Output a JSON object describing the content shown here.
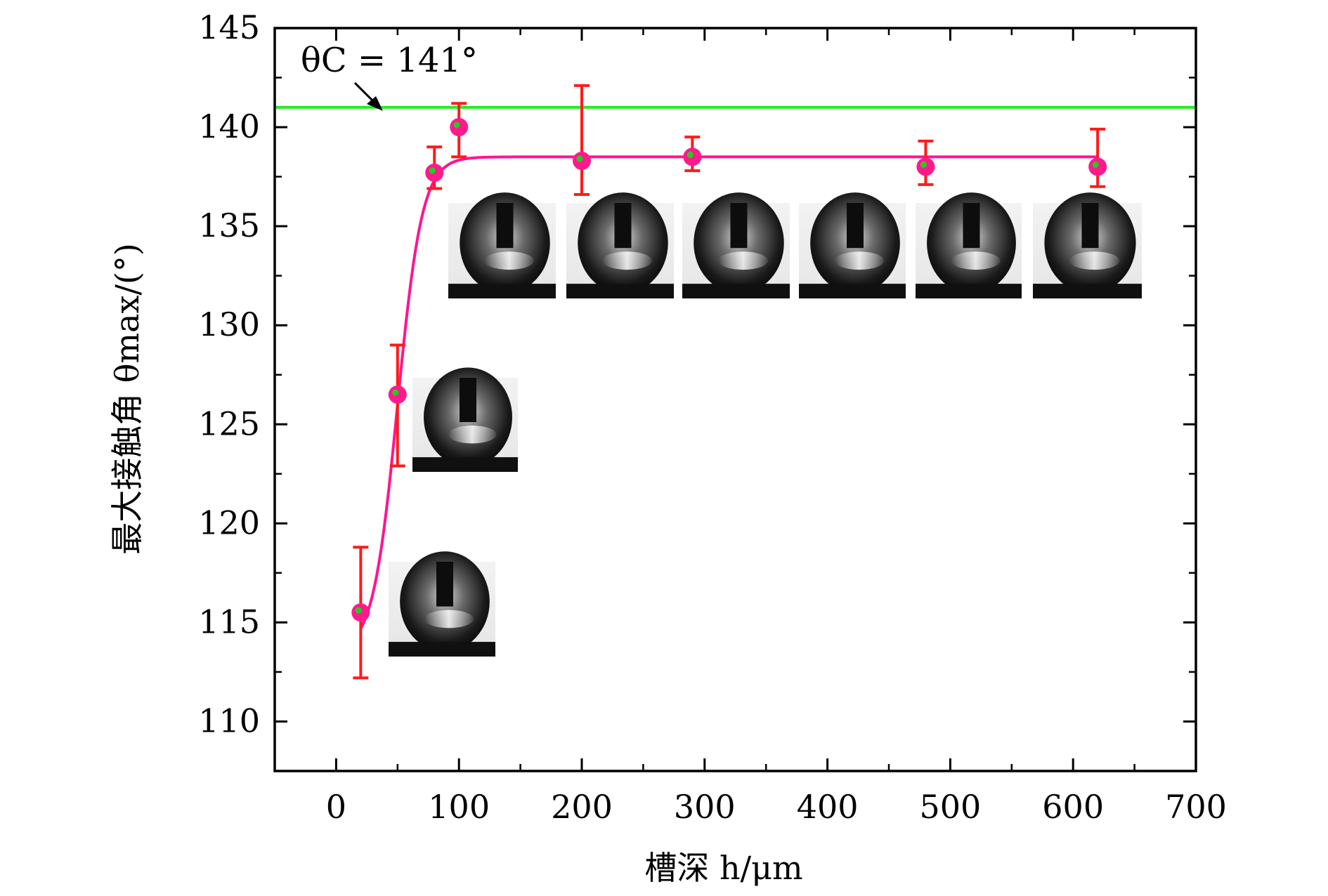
{
  "chart_data": {
    "type": "scatter",
    "title": "",
    "xlabel": "槽深 h/μm",
    "ylabel": "最大接触角 θmax/(°)",
    "xlim": [
      -50,
      700
    ],
    "ylim": [
      107.5,
      145
    ],
    "xticks": [
      0,
      100,
      200,
      300,
      400,
      500,
      600,
      700
    ],
    "yticks": [
      110,
      115,
      120,
      125,
      130,
      135,
      140,
      145
    ],
    "grid": false,
    "colors": {
      "marker": "#ff1a8c",
      "marker_center": "#22cc22",
      "error_bar": "#ff1a1a",
      "fit_line": "#ff1493",
      "reference_line": "#22ee22"
    },
    "series": [
      {
        "points": [
          {
            "x": 20,
            "y": 115.5,
            "err_low": 112.2,
            "err_high": 118.8
          },
          {
            "x": 50,
            "y": 126.5,
            "err_low": 122.9,
            "err_high": 129.0
          },
          {
            "x": 80,
            "y": 137.7,
            "err_low": 136.9,
            "err_high": 139.0
          },
          {
            "x": 100,
            "y": 140.0,
            "err_low": 138.5,
            "err_high": 141.2
          },
          {
            "x": 200,
            "y": 138.3,
            "err_low": 136.6,
            "err_high": 142.1
          },
          {
            "x": 290,
            "y": 138.5,
            "err_low": 137.8,
            "err_high": 139.5
          },
          {
            "x": 480,
            "y": 138.0,
            "err_low": 137.1,
            "err_high": 139.3
          },
          {
            "x": 620,
            "y": 138.0,
            "err_low": 137.0,
            "err_high": 139.9
          }
        ]
      }
    ],
    "fit": {
      "x_start": 20,
      "x_end": 620,
      "plateau": 138.5,
      "base": 113.5,
      "x_mid": 50,
      "width": 10
    },
    "reference_line": {
      "y": 141,
      "label": "θC = 141°"
    },
    "annotations": {
      "reference_label": "θC = 141°"
    },
    "insets": [
      {
        "name": "droplet-photo-h20",
        "x_data": 25
      },
      {
        "name": "droplet-photo-h50",
        "x_data": 55
      },
      {
        "name": "droplet-photo-h100",
        "x_data": 95
      },
      {
        "name": "droplet-photo-h200",
        "x_data": 195
      },
      {
        "name": "droplet-photo-h290",
        "x_data": 290
      },
      {
        "name": "droplet-photo-h400",
        "x_data": 385
      },
      {
        "name": "droplet-photo-h480",
        "x_data": 480
      },
      {
        "name": "droplet-photo-h620",
        "x_data": 575
      }
    ]
  }
}
